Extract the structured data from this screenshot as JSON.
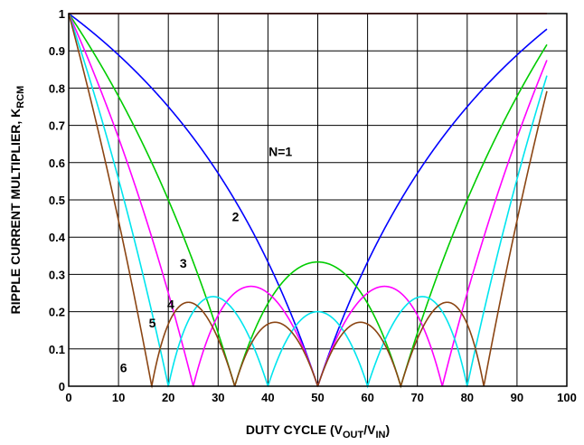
{
  "chart_data": {
    "type": "line",
    "xlabel": {
      "main": "DUTY CYCLE (V",
      "sub1": "OUT",
      "mid": "/V",
      "sub2": "IN",
      "end": ")"
    },
    "ylabel": {
      "main": "RIPPLE CURRENT MULTIPLIER, K",
      "sub": "RCM"
    },
    "xlim": [
      0,
      100
    ],
    "ylim": [
      0,
      1
    ],
    "x_ticks": [
      "0",
      "10",
      "20",
      "30",
      "40",
      "50",
      "60",
      "70",
      "80",
      "90",
      "100"
    ],
    "y_ticks": [
      "0",
      "0.1",
      "0.2",
      "0.3",
      "0.4",
      "0.5",
      "0.6",
      "0.7",
      "0.8",
      "0.9",
      "1"
    ],
    "grid": true,
    "legend": "none",
    "x_range_plotted": [
      0,
      96
    ],
    "series": [
      {
        "name": "N=1",
        "phases": 1,
        "color": "#ff0000"
      },
      {
        "name": "2",
        "phases": 2,
        "color": "#0000ff"
      },
      {
        "name": "3",
        "phases": 3,
        "color": "#00cc00"
      },
      {
        "name": "4",
        "phases": 4,
        "color": "#ff00ff"
      },
      {
        "name": "5",
        "phases": 5,
        "color": "#00e5ee"
      },
      {
        "name": "6",
        "phases": 6,
        "color": "#8b4513"
      }
    ],
    "series_labels": [
      {
        "text": "N=1",
        "x": 42.5,
        "y": 0.63
      },
      {
        "text": "2",
        "x": 33.5,
        "y": 0.455
      },
      {
        "text": "3",
        "x": 23,
        "y": 0.33
      },
      {
        "text": "4",
        "x": 20.5,
        "y": 0.22
      },
      {
        "text": "5",
        "x": 16.8,
        "y": 0.17
      },
      {
        "text": "6",
        "x": 11,
        "y": 0.05
      }
    ]
  }
}
